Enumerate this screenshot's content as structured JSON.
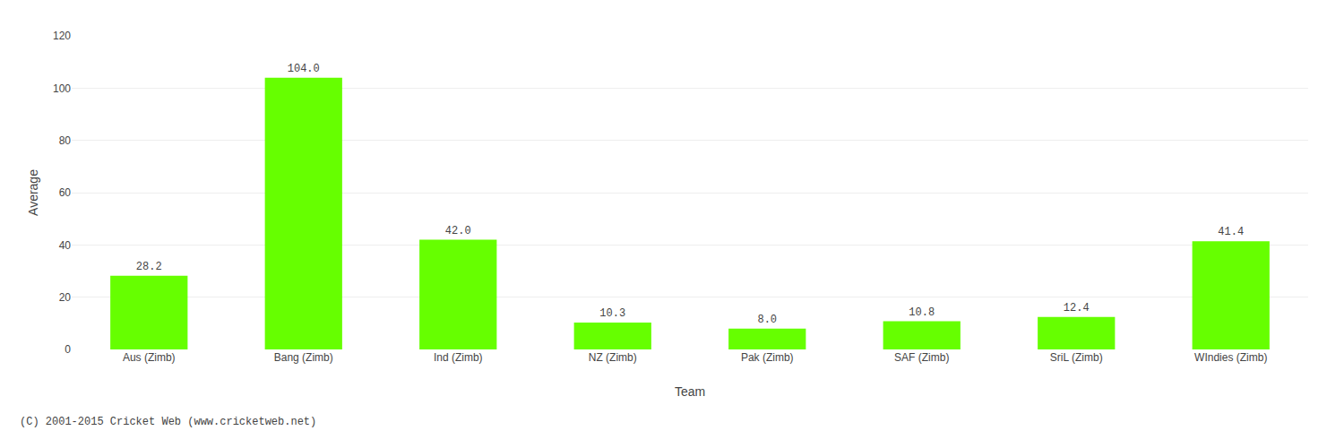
{
  "chart_data": {
    "type": "bar",
    "categories": [
      "Aus (Zimb)",
      "Bang (Zimb)",
      "Ind (Zimb)",
      "NZ (Zimb)",
      "Pak (Zimb)",
      "SAF (Zimb)",
      "SriL (Zimb)",
      "WIndies (Zimb)"
    ],
    "values": [
      28.2,
      104.0,
      42.0,
      10.3,
      8.0,
      10.8,
      12.4,
      41.4
    ],
    "value_labels": [
      "28.2",
      "104.0",
      "42.0",
      "10.3",
      "8.0",
      "10.8",
      "12.4",
      "41.4"
    ],
    "data_labels": true,
    "color": "#66ff00",
    "xlabel": "Team",
    "ylabel": "Average",
    "ylim": [
      0,
      120
    ],
    "yticks": [
      0,
      20,
      40,
      60,
      80,
      100,
      120
    ],
    "grid": true,
    "annotations": [
      "(C) 2001-2015 Cricket Web (www.cricketweb.net)"
    ]
  }
}
